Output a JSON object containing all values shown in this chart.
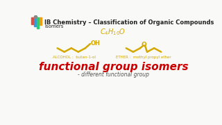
{
  "bg_color": "#f9f9f7",
  "title_text": "IB Chemistry – Classification of Organic Compounds",
  "subtitle_text": "Isomers",
  "formula_color": "#d4a800",
  "alcohol_label": "ALCOHOL :  butan-1-ol",
  "ether_label": "ETHER :  methyl propyl ether",
  "main_label": "functional group isomers",
  "main_label_color": "#cc0000",
  "sub_label": "- different functional group",
  "sub_label_color": "#555555",
  "bond_color": "#d4a800",
  "title_color": "#222222",
  "subtitle_color": "#222222",
  "bar_colors": [
    "#e74c3c",
    "#3498db",
    "#2ecc71",
    "#f39c12"
  ],
  "alcohol_label_color": "#d4a800",
  "ether_label_color": "#d4a800"
}
